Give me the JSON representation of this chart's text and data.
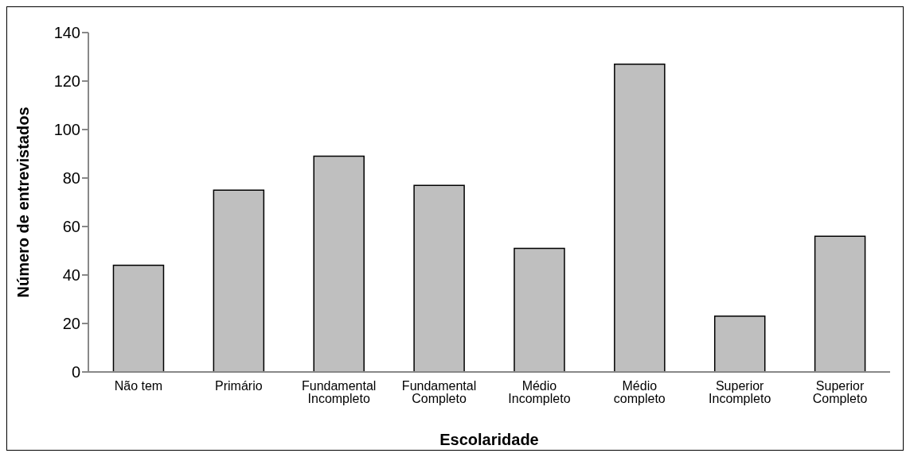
{
  "chart_data": {
    "type": "bar",
    "xlabel": "Escolaridade",
    "ylabel": "Número de entrevistados",
    "categories": [
      "Não tem",
      "Primário",
      "Fundamental Incompleto",
      "Fundamental Completo",
      "Médio Incompleto",
      "Médio completo",
      "Superior Incompleto",
      "Superior Completo"
    ],
    "values": [
      44,
      75,
      89,
      77,
      51,
      127,
      23,
      56
    ],
    "color": "#bfbfbf",
    "ylim": [
      0,
      140
    ],
    "yticks": [
      0,
      20,
      40,
      60,
      80,
      100,
      120,
      140
    ],
    "grid": false,
    "legend": false
  }
}
